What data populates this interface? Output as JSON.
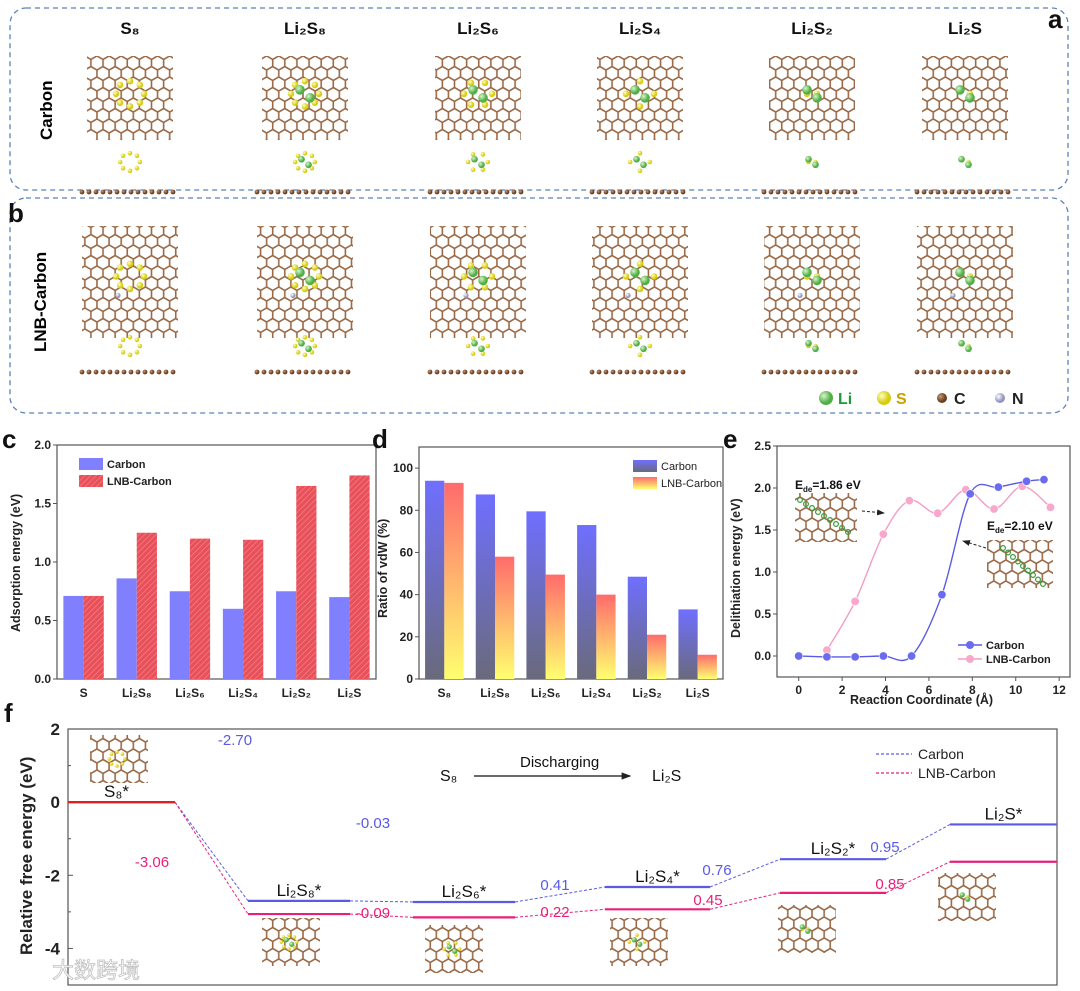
{
  "panel_labels": {
    "a": "a",
    "b": "b",
    "c": "c",
    "d": "d",
    "e": "e",
    "f": "f"
  },
  "structures": {
    "columns": [
      "S₈",
      "Li₂S₈",
      "Li₂S₆",
      "Li₂S₄",
      "Li₂S₂",
      "Li₂S"
    ],
    "rows": [
      "Carbon",
      "LNB-Carbon"
    ],
    "legend": [
      {
        "label": "Li",
        "color": "#1f9a3a",
        "ball": "#7ccf6a"
      },
      {
        "label": "S",
        "color": "#c9a000",
        "ball": "#f2ee3a"
      },
      {
        "label": "C",
        "color": "#222222",
        "ball": "#8a5a3a"
      },
      {
        "label": "N",
        "color": "#222222",
        "ball": "#b8bcd8"
      }
    ]
  },
  "watermark": "大数跨境",
  "chart_data": [
    {
      "id": "c",
      "type": "bar",
      "categories": [
        "S",
        "Li₂S₈",
        "Li₂S₆",
        "Li₂S₄",
        "Li₂S₂",
        "Li₂S"
      ],
      "series": [
        {
          "name": "Carbon",
          "color": "#8080ff",
          "values": [
            0.71,
            0.86,
            0.75,
            0.6,
            0.75,
            0.7
          ]
        },
        {
          "name": "LNB-Carbon",
          "color": "#e8505a",
          "values": [
            0.71,
            1.25,
            1.2,
            1.19,
            1.65,
            1.74
          ]
        }
      ],
      "xlabel": "",
      "ylabel": "Adsorption energy (eV)",
      "ylim": [
        0,
        2
      ],
      "yticks": [
        0,
        0.5,
        1.0,
        1.5,
        2.0
      ],
      "ytick_labels": [
        "0.0",
        "0.5",
        "1.0",
        "1.5",
        "2.0"
      ],
      "legend": "top-left"
    },
    {
      "id": "d",
      "type": "bar",
      "categories": [
        "S₈",
        "Li₂S₈",
        "Li₂S₆",
        "Li₂S₄",
        "Li₂S₂",
        "Li₂S"
      ],
      "series": [
        {
          "name": "Carbon",
          "color": "#6f6fff",
          "values": [
            94,
            87.5,
            79.5,
            73,
            48.5,
            33
          ]
        },
        {
          "name": "LNB-Carbon",
          "color": "#ff7070",
          "values": [
            93,
            58,
            49.5,
            40,
            21,
            11.5
          ]
        }
      ],
      "xlabel": "",
      "ylabel": "Ratio of vdW (%)",
      "ylim": [
        0,
        110
      ],
      "yticks": [
        0,
        20,
        40,
        60,
        80,
        100
      ],
      "ytick_labels": [
        "0",
        "20",
        "40",
        "60",
        "80",
        "100"
      ],
      "legend": "top-right"
    },
    {
      "id": "e",
      "type": "line",
      "series": [
        {
          "name": "Carbon",
          "color": "#5a5ae6",
          "x": [
            0,
            1.3,
            2.6,
            3.9,
            5.2,
            6.6,
            7.9,
            9.2,
            10.5,
            11.3
          ],
          "y": [
            0,
            -0.01,
            -0.01,
            0,
            0,
            0.73,
            1.93,
            2.01,
            2.08,
            2.1
          ]
        },
        {
          "name": "LNB-Carbon",
          "color": "#f59cc4",
          "x": [
            1.3,
            2.6,
            3.9,
            5.1,
            6.4,
            7.7,
            9.0,
            10.3,
            11.6
          ],
          "y": [
            0.07,
            0.65,
            1.45,
            1.85,
            1.7,
            1.98,
            1.75,
            2.02,
            1.77
          ]
        }
      ],
      "xlabel": "Reaction Coordinate (Å)",
      "ylabel": "Delithiation energy (eV)",
      "xlim": [
        -1,
        12.5
      ],
      "ylim": [
        -0.25,
        2.5
      ],
      "xticks": [
        0,
        2,
        4,
        6,
        8,
        10,
        12
      ],
      "xtick_labels": [
        "0",
        "2",
        "4",
        "6",
        "8",
        "10",
        "12"
      ],
      "yticks": [
        0,
        0.5,
        1.0,
        1.5,
        2.0,
        2.5
      ],
      "ytick_labels": [
        "0.0",
        "0.5",
        "1.0",
        "1.5",
        "2.0",
        "2.5"
      ],
      "annotations": [
        {
          "prefix": "E",
          "sub": "de",
          "suffix": "=1.86 eV"
        },
        {
          "prefix": "E",
          "sub": "de",
          "suffix": "=2.10 eV"
        }
      ],
      "legend": "bottom-right"
    },
    {
      "id": "f",
      "type": "line",
      "steps": [
        "S₈*",
        "Li₂S₈*",
        "Li₂S₆*",
        "Li₂S₄*",
        "Li₂S₂*",
        "Li₂S*"
      ],
      "series": [
        {
          "name": "Carbon",
          "color": "#5a5ae6",
          "levels": [
            0,
            -2.7,
            -2.73,
            -2.32,
            -1.56,
            -0.61
          ],
          "step_labels": [
            "-2.70",
            "-0.03",
            "0.41",
            "0.76",
            "0.95"
          ]
        },
        {
          "name": "LNB-Carbon",
          "color": "#e8207a",
          "levels": [
            0,
            -3.06,
            -3.15,
            -2.93,
            -2.48,
            -1.63
          ],
          "step_labels": [
            "-3.06",
            "-0.09",
            "0.22",
            "0.45",
            "0.85"
          ]
        }
      ],
      "ylabel": "Relative free energy (eV)",
      "ylim": [
        -5,
        2
      ],
      "yticks": [
        2,
        0,
        -2,
        -4
      ],
      "ytick_labels": [
        "2",
        "0",
        "-2",
        "-4"
      ],
      "scheme": {
        "from": "S₈",
        "arrow_label": "Discharging",
        "to": "Li₂S"
      },
      "legend": "top-right"
    }
  ]
}
